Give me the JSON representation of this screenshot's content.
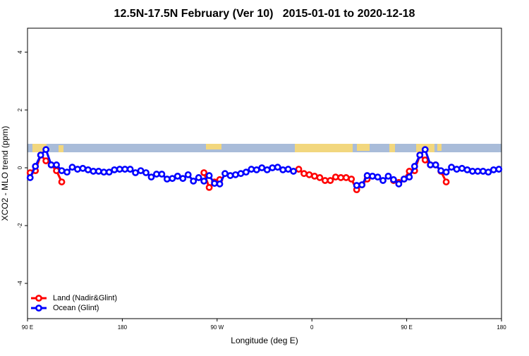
{
  "chart_data": {
    "type": "line",
    "title": "12.5N-17.5N February (Ver 10)   2015-01-01 to 2020-12-18",
    "x_label": "Longitude (deg E)",
    "y_label": "XCO2 - MLO trend (ppm)",
    "x": [
      92.5,
      97.5,
      102.5,
      107.5,
      112.5,
      117.5,
      122.5,
      127.5,
      132.5,
      137.5,
      142.5,
      147.5,
      152.5,
      157.5,
      162.5,
      167.5,
      172.5,
      177.5,
      182.5,
      187.5,
      192.5,
      197.5,
      202.5,
      207.5,
      212.5,
      217.5,
      222.5,
      227.5,
      232.5,
      237.5,
      242.5,
      247.5,
      252.5,
      257.5,
      262.5,
      267.5,
      272.5,
      277.5,
      282.5,
      287.5,
      292.5,
      297.5,
      302.5,
      307.5,
      312.5,
      317.5,
      322.5,
      327.5,
      332.5,
      337.5,
      342.5,
      347.5,
      352.5,
      357.5,
      362.5,
      367.5,
      372.5,
      377.5,
      382.5,
      387.5,
      392.5,
      397.5,
      402.5,
      407.5,
      412.5,
      417.5,
      422.5,
      427.5,
      432.5,
      437.5,
      442.5,
      447.5,
      452.5,
      457.5,
      462.5,
      467.5,
      472.5,
      477.5,
      482.5,
      487.5,
      492.5,
      497.5,
      502.5,
      507.5,
      512.5,
      517.5,
      522.5,
      527.5,
      532.5,
      537.5
    ],
    "series": [
      {
        "name": "Land (Nadir&Glint)",
        "color": "#ff0000",
        "values": [
          -0.17,
          -0.1,
          0.44,
          0.24,
          0.1,
          -0.1,
          -0.49,
          null,
          null,
          null,
          null,
          null,
          null,
          null,
          null,
          null,
          null,
          null,
          null,
          null,
          null,
          null,
          null,
          null,
          null,
          null,
          null,
          null,
          null,
          null,
          null,
          null,
          null,
          -0.17,
          -0.68,
          -0.49,
          -0.41,
          null,
          null,
          null,
          null,
          null,
          null,
          null,
          null,
          null,
          null,
          null,
          null,
          null,
          null,
          -0.05,
          -0.2,
          -0.24,
          -0.29,
          -0.34,
          -0.44,
          -0.44,
          -0.32,
          -0.34,
          -0.34,
          -0.39,
          -0.76,
          -0.59,
          -0.39,
          null,
          null,
          null,
          null,
          -0.44,
          -0.51,
          -0.39,
          -0.12,
          -0.1,
          0.44,
          0.27,
          0.1,
          0.1,
          -0.12,
          -0.49,
          null,
          null,
          null,
          null,
          null,
          null,
          null,
          null,
          null,
          null
        ]
      },
      {
        "name": "Ocean (Glint)",
        "color": "#0000ff",
        "values": [
          -0.34,
          0.05,
          0.44,
          0.63,
          0.1,
          0.1,
          -0.1,
          -0.15,
          0.02,
          -0.05,
          -0.02,
          -0.07,
          -0.12,
          -0.12,
          -0.15,
          -0.15,
          -0.07,
          -0.05,
          -0.05,
          -0.05,
          -0.17,
          -0.1,
          -0.17,
          -0.32,
          -0.22,
          -0.22,
          -0.39,
          -0.37,
          -0.29,
          -0.37,
          -0.24,
          -0.46,
          -0.34,
          -0.46,
          -0.27,
          -0.54,
          -0.56,
          -0.2,
          -0.27,
          -0.24,
          -0.2,
          -0.15,
          -0.05,
          -0.07,
          0,
          -0.07,
          0,
          0.02,
          -0.07,
          -0.05,
          -0.12,
          null,
          null,
          null,
          null,
          null,
          null,
          null,
          null,
          null,
          null,
          null,
          -0.61,
          -0.59,
          -0.27,
          -0.29,
          -0.32,
          -0.44,
          -0.29,
          -0.41,
          -0.56,
          -0.39,
          -0.32,
          0.05,
          0.44,
          0.63,
          0.1,
          0.1,
          -0.1,
          -0.15,
          0.02,
          -0.05,
          -0.02,
          -0.07,
          -0.12,
          -0.12,
          -0.12,
          -0.15,
          -0.07,
          -0.05
        ]
      }
    ],
    "xlim": [
      90,
      540
    ],
    "xticks": [
      {
        "value": 90,
        "label": "90 E"
      },
      180,
      {
        "value": 270,
        "label": "90 W"
      },
      {
        "value": 360,
        "label": "0"
      },
      {
        "value": 450,
        "label": "90 E"
      },
      {
        "value": 540,
        "label": "180"
      }
    ],
    "ylim": [
      -5.22,
      4.83
    ],
    "yticks": [
      -4,
      -2,
      0,
      2,
      4
    ],
    "legend": "bottom-left"
  }
}
